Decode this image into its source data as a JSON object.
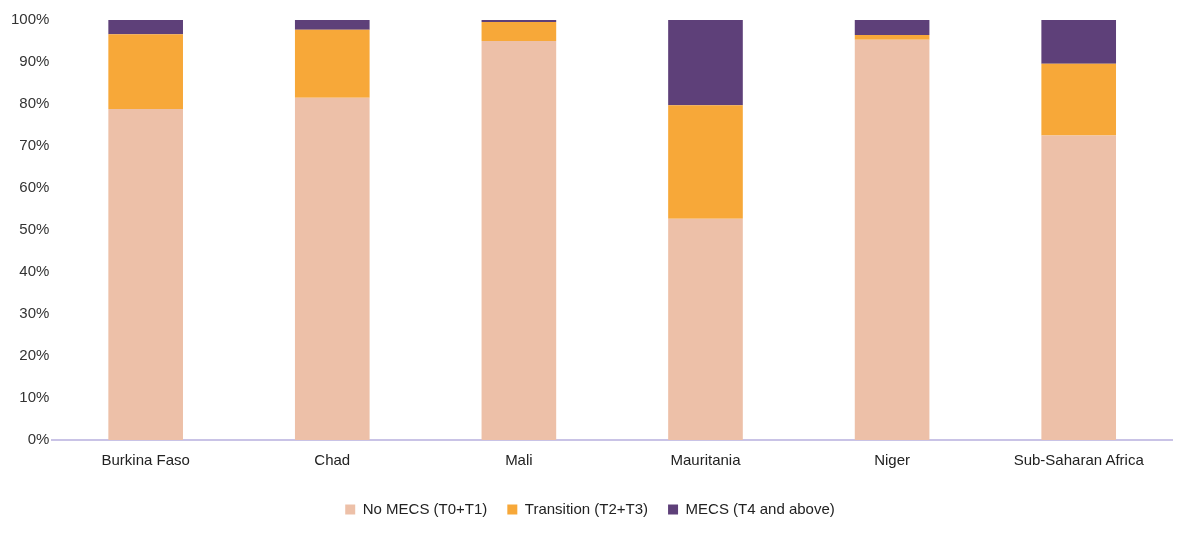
{
  "chart_data": {
    "type": "bar",
    "stacked": true,
    "categories": [
      "Burkina Faso",
      "Chad",
      "Mali",
      "Mauritania",
      "Niger",
      "Sub-Saharan Africa"
    ],
    "series": [
      {
        "name": "No MECS (T0+T1)",
        "color": "#edc0a8",
        "values": [
          78.8,
          81.5,
          95.0,
          52.7,
          95.3,
          72.5
        ]
      },
      {
        "name": "Transition (T2+T3)",
        "color": "#f7a839",
        "values": [
          17.8,
          16.2,
          4.5,
          27.0,
          1.1,
          17.1
        ]
      },
      {
        "name": "MECS (T4 and above)",
        "color": "#5e4079",
        "values": [
          3.4,
          2.3,
          0.5,
          20.3,
          3.6,
          10.4
        ]
      }
    ],
    "ylim": [
      0,
      100
    ],
    "yticks": [
      {
        "value": 0,
        "label": "0%"
      },
      {
        "value": 10,
        "label": "10%"
      },
      {
        "value": 20,
        "label": "20%"
      },
      {
        "value": 30,
        "label": "30%"
      },
      {
        "value": 40,
        "label": "40%"
      },
      {
        "value": 50,
        "label": "50%"
      },
      {
        "value": 60,
        "label": "60%"
      },
      {
        "value": 70,
        "label": "70%"
      },
      {
        "value": 80,
        "label": "80%"
      },
      {
        "value": 90,
        "label": "90%"
      },
      {
        "value": 100,
        "label": "100%"
      }
    ],
    "grid": false,
    "legend": "bottom"
  }
}
